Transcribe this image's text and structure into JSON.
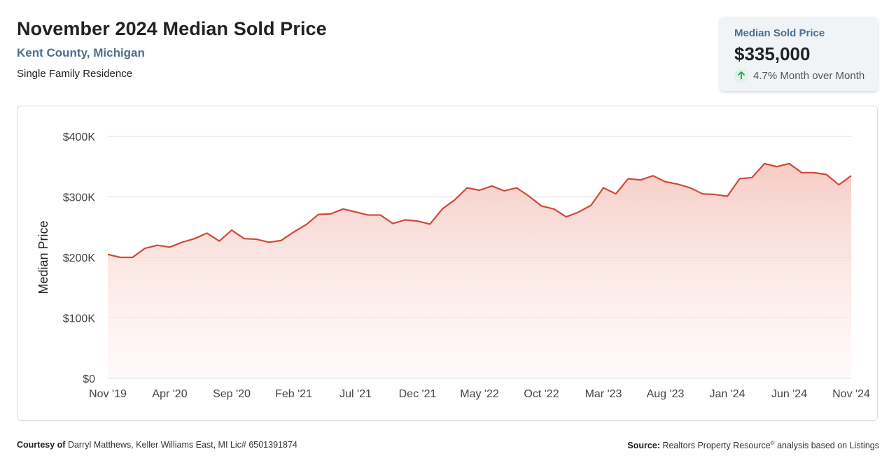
{
  "header": {
    "title": "November 2024 Median Sold Price",
    "subtitle": "Kent County, Michigan",
    "property_type": "Single Family Residence"
  },
  "stat_card": {
    "label": "Median Sold Price",
    "value": "$335,000",
    "change": "4.7% Month over Month",
    "change_icon": "arrow-up-icon",
    "change_color": "#2e9b57"
  },
  "footer": {
    "courtesy_label": "Courtesy of",
    "courtesy_text": "Darryl Matthews, Keller Williams East, MI Lic# 6501391874",
    "source_label": "Source:",
    "source_text_pre": "Realtors Property Resource",
    "source_sup": "®",
    "source_text_post": "analysis based on Listings"
  },
  "colors": {
    "line": "#cf4a38",
    "fill_top": "#f6c9c2",
    "grid": "#dddddd",
    "accent_text": "#4e6f8d"
  },
  "chart_data": {
    "type": "area",
    "ylabel": "Median Price",
    "xlabel": "",
    "ylim": [
      0,
      400000
    ],
    "y_ticks": [
      0,
      100000,
      200000,
      300000,
      400000
    ],
    "y_tick_labels": [
      "$0",
      "$100K",
      "$200K",
      "$300K",
      "$400K"
    ],
    "x_tick_labels": [
      "Nov '19",
      "Apr '20",
      "Sep '20",
      "Feb '21",
      "Jul '21",
      "Dec '21",
      "May '22",
      "Oct '22",
      "Mar '23",
      "Aug '23",
      "Jan '24",
      "Jun '24",
      "Nov '24"
    ],
    "x_tick_every": 5,
    "grid": true,
    "values": [
      205000,
      200000,
      200000,
      215000,
      220000,
      217000,
      225000,
      231000,
      240000,
      227000,
      245000,
      231000,
      230000,
      225000,
      228000,
      242000,
      254000,
      271000,
      272000,
      280000,
      275000,
      270000,
      270000,
      256000,
      262000,
      260000,
      255000,
      280000,
      295000,
      315000,
      311000,
      318000,
      310000,
      315000,
      301000,
      285000,
      280000,
      267000,
      275000,
      286000,
      315000,
      305000,
      330000,
      328000,
      335000,
      325000,
      321000,
      315000,
      305000,
      304000,
      301000,
      330000,
      332000,
      355000,
      350000,
      355000,
      340000,
      340000,
      337000,
      320000,
      335000
    ]
  }
}
